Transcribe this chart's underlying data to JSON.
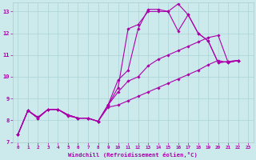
{
  "title": "",
  "xlabel": "Windchill (Refroidissement éolien,°C)",
  "ylabel": "",
  "background_color": "#cce9ec",
  "line_color": "#aa00aa",
  "xlim": [
    -0.5,
    23.5
  ],
  "ylim": [
    7,
    13.4
  ],
  "yticks": [
    7,
    8,
    9,
    10,
    11,
    12,
    13
  ],
  "xticks": [
    0,
    1,
    2,
    3,
    4,
    5,
    6,
    7,
    8,
    9,
    10,
    11,
    12,
    13,
    14,
    15,
    16,
    17,
    18,
    19,
    20,
    21,
    22,
    23
  ],
  "series": [
    {
      "x": [
        0,
        1,
        2,
        3,
        4,
        5,
        6,
        7,
        8,
        9,
        10,
        11,
        12,
        13,
        14,
        15,
        16,
        17,
        18,
        19,
        20,
        21,
        22
      ],
      "y": [
        7.35,
        8.45,
        8.1,
        8.5,
        8.5,
        8.25,
        8.1,
        8.1,
        7.95,
        8.7,
        9.5,
        12.2,
        12.4,
        13.0,
        13.0,
        13.0,
        12.1,
        12.85,
        12.0,
        11.65,
        10.65,
        10.7,
        10.75
      ]
    },
    {
      "x": [
        0,
        1,
        2,
        3,
        4,
        5,
        6,
        7,
        8,
        9,
        10,
        11,
        12,
        13,
        14,
        15,
        16,
        17,
        18,
        19,
        20,
        21,
        22
      ],
      "y": [
        7.35,
        8.45,
        8.1,
        8.5,
        8.5,
        8.2,
        8.1,
        8.1,
        7.95,
        8.7,
        9.85,
        10.3,
        12.2,
        13.1,
        13.1,
        13.0,
        13.35,
        12.85,
        12.0,
        11.65,
        10.65,
        10.7,
        10.75
      ]
    },
    {
      "x": [
        0,
        1,
        2,
        3,
        4,
        5,
        6,
        7,
        8,
        9,
        10,
        11,
        12,
        13,
        14,
        15,
        16,
        17,
        18,
        19,
        20,
        21,
        22
      ],
      "y": [
        7.35,
        8.45,
        8.1,
        8.5,
        8.5,
        8.25,
        8.1,
        8.1,
        7.95,
        8.7,
        9.3,
        9.8,
        10.0,
        10.5,
        10.8,
        11.0,
        11.2,
        11.4,
        11.6,
        11.8,
        11.9,
        10.65,
        10.75
      ]
    },
    {
      "x": [
        0,
        1,
        2,
        3,
        4,
        5,
        6,
        7,
        8,
        9,
        10,
        11,
        12,
        13,
        14,
        15,
        16,
        17,
        18,
        19,
        20,
        21,
        22
      ],
      "y": [
        7.35,
        8.45,
        8.15,
        8.5,
        8.5,
        8.25,
        8.1,
        8.1,
        7.95,
        8.6,
        8.7,
        8.9,
        9.1,
        9.3,
        9.5,
        9.7,
        9.9,
        10.1,
        10.3,
        10.55,
        10.75,
        10.65,
        10.75
      ]
    }
  ]
}
